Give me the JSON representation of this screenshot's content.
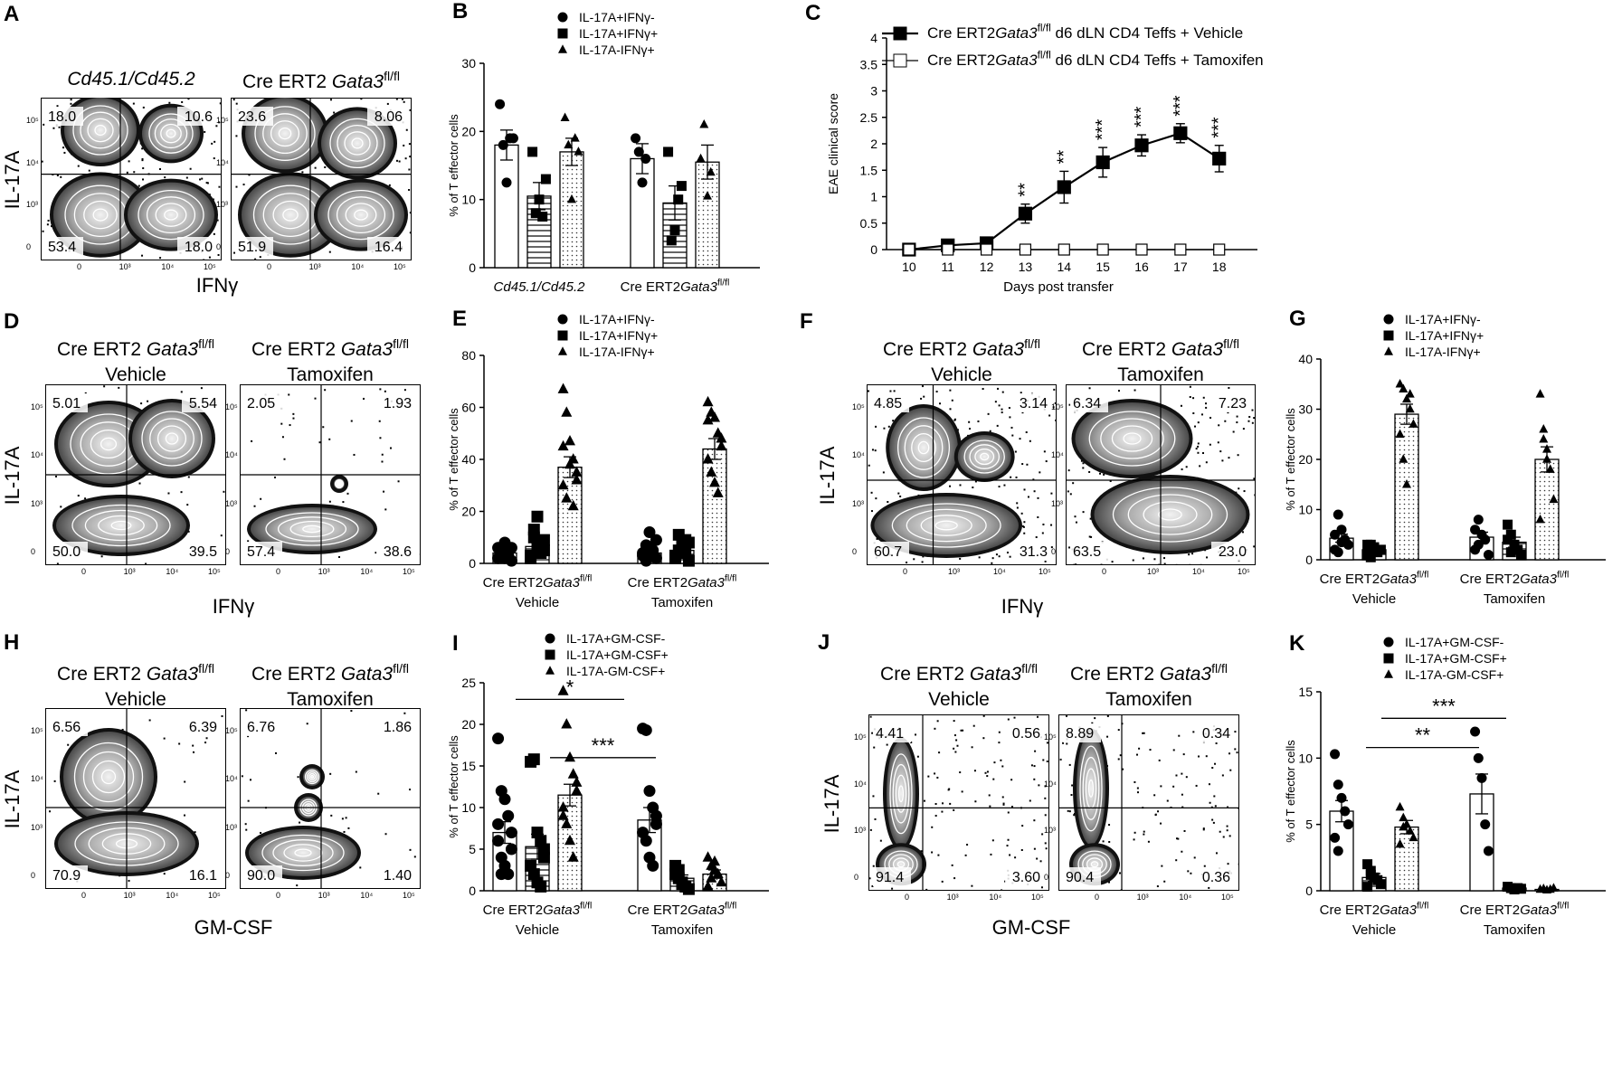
{
  "colors": {
    "ink": "#000000",
    "contour_dark": "#2a2a2a",
    "contour_light": "#d6d6d6",
    "background": "#ffffff"
  },
  "panels": {
    "A": {
      "letter": "A",
      "y_axis": "IL-17A",
      "x_axis": "IFNγ",
      "plots": [
        {
          "title": "Cd45.1/Cd45.2",
          "q": [
            "18.0",
            "10.6",
            "53.4",
            "18.0"
          ]
        },
        {
          "title_pre": "Cre ERT2 ",
          "title_gene": "Gata3",
          "title_sup": "fl/fl",
          "q": [
            "23.6",
            "8.06",
            "51.9",
            "16.4"
          ]
        }
      ],
      "ticks": [
        "10⁵",
        "10⁴",
        "10³",
        "10²",
        "0",
        "0",
        "10³",
        "10⁴",
        "10⁵"
      ]
    },
    "D": {
      "letter": "D",
      "y_axis": "IL-17A",
      "x_axis": "IFNγ",
      "plots": [
        {
          "l1_pre": "Cre ERT2 ",
          "l1_gene": "Gata3",
          "l1_sup": "fl/fl",
          "l2": "Vehicle",
          "q": [
            "5.01",
            "5.54",
            "50.0",
            "39.5"
          ]
        },
        {
          "l1_pre": "Cre ERT2 ",
          "l1_gene": "Gata3",
          "l1_sup": "fl/fl",
          "l2": "Tamoxifen",
          "q": [
            "2.05",
            "1.93",
            "57.4",
            "38.6"
          ]
        }
      ]
    },
    "F": {
      "letter": "F",
      "y_axis": "IL-17A",
      "x_axis": "IFNγ",
      "plots": [
        {
          "l1_pre": "Cre ERT2 ",
          "l1_gene": "Gata3",
          "l1_sup": "fl/fl",
          "l2": "Vehicle",
          "q": [
            "4.85",
            "3.14",
            "60.7",
            "31.3"
          ]
        },
        {
          "l1_pre": "Cre ERT2 ",
          "l1_gene": "Gata3",
          "l1_sup": "fl/fl",
          "l2": "Tamoxifen",
          "q": [
            "6.34",
            "7.23",
            "63.5",
            "23.0"
          ]
        }
      ]
    },
    "H": {
      "letter": "H",
      "y_axis": "IL-17A",
      "x_axis": "GM-CSF",
      "plots": [
        {
          "l1_pre": "Cre ERT2 ",
          "l1_gene": "Gata3",
          "l1_sup": "fl/fl",
          "l2": "Vehicle",
          "q": [
            "6.56",
            "6.39",
            "70.9",
            "16.1"
          ]
        },
        {
          "l1_pre": "Cre ERT2 ",
          "l1_gene": "Gata3",
          "l1_sup": "fl/fl",
          "l2": "Tamoxifen",
          "q": [
            "6.76",
            "1.86",
            "90.0",
            "1.40"
          ]
        }
      ]
    },
    "J": {
      "letter": "J",
      "y_axis": "IL-17A",
      "x_axis": "GM-CSF",
      "plots": [
        {
          "l1_pre": "Cre ERT2 ",
          "l1_gene": "Gata3",
          "l1_sup": "fl/fl",
          "l2": "Vehicle",
          "q": [
            "4.41",
            "0.56",
            "91.4",
            "3.60"
          ]
        },
        {
          "l1_pre": "Cre ERT2 ",
          "l1_gene": "Gata3",
          "l1_sup": "fl/fl",
          "l2": "Tamoxifen",
          "q": [
            "8.89",
            "0.34",
            "90.4",
            "0.36"
          ]
        }
      ]
    }
  },
  "chart_data": [
    {
      "panel": "B",
      "type": "bar",
      "ylabel": "% of T effector cells",
      "ylim": [
        0,
        30
      ],
      "yticks": [
        "0",
        "10",
        "20",
        "30"
      ],
      "groups": [
        {
          "label": "Cd45.1/Cd45.2",
          "italic": true
        },
        {
          "label_pre": "Cre ERT2",
          "label_gene": "Gata3",
          "label_sup": "fl/fl"
        }
      ],
      "legend": [
        "IL-17A+IFNγ-",
        "IL-17A+IFNγ+",
        "IL-17A-IFNγ+"
      ],
      "series": [
        {
          "name": "IL-17A+IFNγ-",
          "values": [
            18,
            16
          ],
          "err": [
            2.2,
            2.2
          ],
          "points": [
            [
              24,
              18,
              12.5,
              19,
              19
            ],
            [
              19,
              17,
              12.5,
              16
            ]
          ]
        },
        {
          "name": "IL-17A+IFNγ+",
          "values": [
            10.5,
            9.5
          ],
          "err": [
            2,
            2.5
          ],
          "points": [
            [
              17,
              8,
              10,
              7.5,
              13
            ],
            [
              17,
              4,
              5.5,
              10,
              12
            ]
          ]
        },
        {
          "name": "IL-17A-IFNγ+",
          "values": [
            17,
            15.5
          ],
          "err": [
            2,
            2.5
          ],
          "points": [
            [
              22,
              18,
              10,
              19,
              17
            ],
            [
              16,
              21,
              10.5,
              14
            ]
          ]
        }
      ]
    },
    {
      "panel": "C",
      "type": "line",
      "xlabel": "Days post transfer",
      "ylabel": "EAE clinical score",
      "ylim": [
        0,
        4
      ],
      "yticks": [
        "0",
        "0.5",
        "1",
        "1.5",
        "2",
        "2.5",
        "3",
        "3.5",
        "4"
      ],
      "x": [
        "10",
        "11",
        "12",
        "13",
        "14",
        "15",
        "16",
        "17",
        "18"
      ],
      "series": [
        {
          "name_pre": "Cre ERT2",
          "name_gene": "Gata3",
          "name_sup": "fl/fl",
          "name_post": " d6 dLN CD4 Teffs + Vehicle",
          "filled": true,
          "values": [
            0,
            0.08,
            0.12,
            0.68,
            1.18,
            1.65,
            1.97,
            2.2,
            1.72
          ],
          "err": [
            0,
            0.04,
            0.05,
            0.18,
            0.3,
            0.28,
            0.2,
            0.18,
            0.25
          ]
        },
        {
          "name_pre": "Cre ERT2",
          "name_gene": "Gata3",
          "name_sup": "fl/fl",
          "name_post": " d6 dLN CD4 Teffs + Tamoxifen",
          "filled": false,
          "values": [
            0,
            0,
            0,
            0,
            0,
            0,
            0,
            0,
            0
          ],
          "err": [
            0,
            0,
            0,
            0,
            0,
            0,
            0,
            0,
            0
          ]
        }
      ],
      "significance": [
        {
          "x": "13",
          "label": "**"
        },
        {
          "x": "14",
          "label": "**"
        },
        {
          "x": "15",
          "label": "***"
        },
        {
          "x": "16",
          "label": "***"
        },
        {
          "x": "17",
          "label": "***"
        },
        {
          "x": "18",
          "label": "***"
        }
      ]
    },
    {
      "panel": "E",
      "type": "bar",
      "ylabel": "% of T effector cells",
      "ylim": [
        0,
        80
      ],
      "yticks": [
        "0",
        "20",
        "40",
        "60",
        "80"
      ],
      "groups": [
        {
          "label_pre": "Cre ERT2",
          "label_gene": "Gata3",
          "label_sup": "fl/fl",
          "sub": "Vehicle"
        },
        {
          "label_pre": "Cre ERT2",
          "label_gene": "Gata3",
          "label_sup": "fl/fl",
          "sub": "Tamoxifen"
        }
      ],
      "legend": [
        "IL-17A+IFNγ-",
        "IL-17A+IFNγ+",
        "IL-17A-IFNγ+"
      ],
      "series": [
        {
          "name": "IL-17A+IFNγ-",
          "values": [
            4,
            4
          ],
          "err": [
            1,
            1.2
          ],
          "points": [
            [
              2,
              5,
              8,
              3,
              1,
              6,
              4,
              2,
              3,
              6
            ],
            [
              3,
              7,
              12,
              5,
              2,
              4,
              1,
              6,
              3,
              9
            ]
          ]
        },
        {
          "name": "IL-17A+IFNγ+",
          "values": [
            6.5,
            5
          ],
          "err": [
            1.5,
            1.2
          ],
          "points": [
            [
              3,
              13,
              18,
              8,
              5,
              2,
              10,
              6,
              4,
              9
            ],
            [
              2,
              11,
              6,
              4,
              8,
              3,
              5,
              7,
              9,
              1
            ]
          ]
        },
        {
          "name": "IL-17A-IFNγ+",
          "values": [
            37,
            44
          ],
          "err": [
            4,
            4
          ],
          "points": [
            [
              67,
              58,
              47,
              40,
              35,
              30,
              25,
              38,
              22,
              32,
              45
            ],
            [
              62,
              58,
              56,
              50,
              48,
              40,
              35,
              31,
              27,
              45,
              55
            ]
          ]
        }
      ]
    },
    {
      "panel": "G",
      "type": "bar",
      "ylabel": "% of T effector cells",
      "ylim": [
        0,
        40
      ],
      "yticks": [
        "0",
        "10",
        "20",
        "30",
        "40"
      ],
      "groups": [
        {
          "label_pre": "Cre ERT2",
          "label_gene": "Gata3",
          "label_sup": "fl/fl",
          "sub": "Vehicle"
        },
        {
          "label_pre": "Cre ERT2",
          "label_gene": "Gata3",
          "label_sup": "fl/fl",
          "sub": "Tamoxifen"
        }
      ],
      "legend": [
        "IL-17A+IFNγ-",
        "IL-17A+IFNγ+",
        "IL-17A-IFNγ+"
      ],
      "series": [
        {
          "name": "IL-17A+IFNγ-",
          "values": [
            4.3,
            4.5
          ],
          "err": [
            0.8,
            1
          ],
          "points": [
            [
              2,
              9,
              6,
              4,
              3,
              5,
              1.5,
              3.5
            ],
            [
              2,
              8,
              5,
              4,
              1,
              6,
              3
            ]
          ]
        },
        {
          "name": "IL-17A+IFNγ+",
          "values": [
            2,
            3.5
          ],
          "err": [
            0.5,
            1
          ],
          "points": [
            [
              1,
              3,
              2.5,
              1.5,
              2,
              3,
              0.5
            ],
            [
              7,
              5,
              3,
              2,
              1,
              4,
              1.5
            ]
          ]
        },
        {
          "name": "IL-17A-IFNγ+",
          "values": [
            29,
            20
          ],
          "err": [
            2,
            2.5
          ],
          "points": [
            [
              35,
              34,
              32,
              30,
              27,
              25,
              20,
              15,
              33
            ],
            [
              33,
              24,
              22,
              18,
              12,
              8,
              26,
              20
            ]
          ]
        }
      ]
    },
    {
      "panel": "I",
      "type": "bar",
      "ylabel": "% of T effector cells",
      "ylim": [
        0,
        25
      ],
      "yticks": [
        "0",
        "5",
        "10",
        "15",
        "20",
        "25"
      ],
      "groups": [
        {
          "label_pre": "Cre ERT2",
          "label_gene": "Gata3",
          "label_sup": "fl/fl",
          "sub": "Vehicle"
        },
        {
          "label_pre": "Cre ERT2",
          "label_gene": "Gata3",
          "label_sup": "fl/fl",
          "sub": "Tamoxifen"
        }
      ],
      "legend": [
        "IL-17A+GM-CSF-",
        "IL-17A+GM-CSF+",
        "IL-17A-GM-CSF+"
      ],
      "series": [
        {
          "name": "IL-17A+GM-CSF-",
          "values": [
            7,
            8.5
          ],
          "err": [
            1.3,
            1.5
          ],
          "points": [
            [
              18.3,
              12,
              11,
              9,
              7,
              6,
              4,
              3,
              2,
              5,
              8,
              2
            ],
            [
              19.5,
              19.3,
              12,
              10,
              9,
              7,
              6,
              4,
              3,
              8
            ]
          ]
        },
        {
          "name": "IL-17A+GM-CSF+",
          "values": [
            5.3,
            1.5
          ],
          "err": [
            1.5,
            0.4
          ],
          "points": [
            [
              15.5,
              15.8,
              7,
              6,
              4,
              3,
              2,
              1,
              0.5,
              5
            ],
            [
              3,
              2.5,
              1,
              0.5,
              0.2,
              2,
              1.5,
              0.8
            ]
          ]
        },
        {
          "name": "IL-17A-GM-CSF+",
          "values": [
            11.5,
            2
          ],
          "err": [
            1.3,
            0.5
          ],
          "points": [
            [
              24,
              20,
              16,
              14,
              12,
              10,
              8,
              6,
              4,
              13,
              9
            ],
            [
              4,
              3,
              2.5,
              2,
              1,
              0.5,
              1.5,
              3.5
            ]
          ]
        }
      ],
      "significance": [
        {
          "label": "*",
          "from": "Vehicle",
          "to": "Tamoxifen",
          "level": 23
        },
        {
          "label": "***",
          "from": "Vehicle",
          "to": "Tamoxifen",
          "level": 16
        }
      ]
    },
    {
      "panel": "K",
      "type": "bar",
      "ylabel": "% of T effector cells",
      "ylim": [
        0,
        15
      ],
      "yticks": [
        "0",
        "5",
        "10",
        "15"
      ],
      "groups": [
        {
          "label_pre": "Cre ERT2",
          "label_gene": "Gata3",
          "label_sup": "fl/fl",
          "sub": "Vehicle"
        },
        {
          "label_pre": "Cre ERT2",
          "label_gene": "Gata3",
          "label_sup": "fl/fl",
          "sub": "Tamoxifen"
        }
      ],
      "legend": [
        "IL-17A+GM-CSF-",
        "IL-17A+GM-CSF+",
        "IL-17A-GM-CSF+"
      ],
      "series": [
        {
          "name": "IL-17A+GM-CSF-",
          "values": [
            6,
            7.3
          ],
          "err": [
            0.8,
            1.5
          ],
          "points": [
            [
              10.3,
              8,
              7,
              6,
              5,
              4,
              3
            ],
            [
              12,
              10,
              8.5,
              5,
              3
            ]
          ]
        },
        {
          "name": "IL-17A+GM-CSF+",
          "values": [
            1,
            0.2
          ],
          "err": [
            0.3,
            0.05
          ],
          "points": [
            [
              2,
              1.5,
              1,
              0.8,
              0.5,
              0.3,
              1.2
            ],
            [
              0.3,
              0.2,
              0.1,
              0.2,
              0.15
            ]
          ]
        },
        {
          "name": "IL-17A-GM-CSF+",
          "values": [
            4.8,
            0.1
          ],
          "err": [
            0.5,
            0.05
          ],
          "points": [
            [
              6.3,
              5.5,
              5,
              4.5,
              4,
              3.5,
              4.8
            ],
            [
              0.1,
              0.15,
              0.05,
              0.1,
              0.2
            ]
          ]
        }
      ],
      "significance": [
        {
          "label": "**",
          "from": "Vehicle",
          "to": "Tamoxifen",
          "level": 10.8
        },
        {
          "label": "***",
          "from": "Vehicle",
          "to": "Tamoxifen",
          "level": 13
        }
      ]
    }
  ]
}
